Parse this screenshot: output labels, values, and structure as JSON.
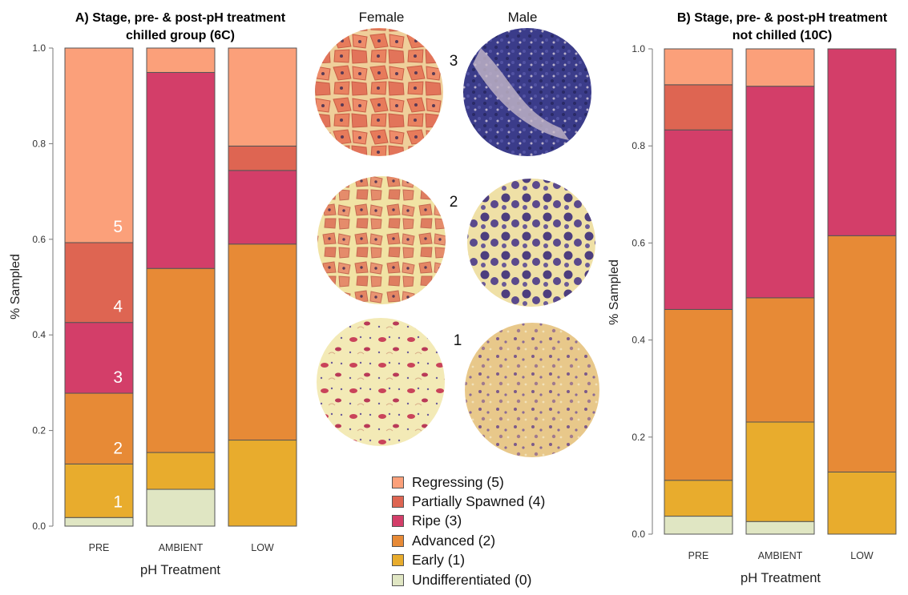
{
  "colors": {
    "stage5": "#FBA07A",
    "stage4": "#DE6552",
    "stage3": "#D33E69",
    "stage2": "#E78A36",
    "stage1": "#E8AC2D",
    "stage0": "#E0E6C3",
    "axis": "#777777",
    "bar_edge": "#555555"
  },
  "micrographs": {
    "female_label": "Female",
    "male_label": "Male",
    "row_labels": [
      "3",
      "2",
      "1"
    ]
  },
  "legend": [
    {
      "label": "Regressing (5)",
      "color": "#FBA07A"
    },
    {
      "label": "Partially Spawned (4)",
      "color": "#DE6552"
    },
    {
      "label": "Ripe (3)",
      "color": "#D33E69"
    },
    {
      "label": "Advanced (2)",
      "color": "#E78A36"
    },
    {
      "label": "Early (1)",
      "color": "#E8AC2D"
    },
    {
      "label": "Undifferentiated (0)",
      "color": "#E0E6C3"
    }
  ],
  "chart_data": [
    {
      "type": "bar",
      "stacked": true,
      "title": "A) Stage, pre- & post-pH treatment",
      "subtitle": "chilled group (6C)",
      "xlabel": "pH Treatment",
      "ylabel": "% Sampled",
      "ylim": [
        0,
        1
      ],
      "yticks": [
        "0.0",
        "0.2",
        "0.4",
        "0.6",
        "0.8",
        "1.0"
      ],
      "categories": [
        "PRE",
        "AMBIENT",
        "LOW"
      ],
      "stage_labels": [
        "1",
        "2",
        "3",
        "4",
        "5"
      ],
      "series": [
        {
          "name": "Undifferentiated (0)",
          "values": [
            0.018,
            0.077,
            0.0
          ]
        },
        {
          "name": "Early (1)",
          "values": [
            0.112,
            0.077,
            0.18
          ]
        },
        {
          "name": "Advanced (2)",
          "values": [
            0.148,
            0.385,
            0.41
          ]
        },
        {
          "name": "Ripe (3)",
          "values": [
            0.148,
            0.41,
            0.154
          ]
        },
        {
          "name": "Partially Spawned (4)",
          "values": [
            0.167,
            0.0,
            0.051
          ]
        },
        {
          "name": "Regressing (5)",
          "values": [
            0.407,
            0.051,
            0.205
          ]
        }
      ]
    },
    {
      "type": "bar",
      "stacked": true,
      "title": "B) Stage, pre- & post-pH treatment",
      "subtitle": "not chilled (10C)",
      "xlabel": "pH Treatment",
      "ylabel": "% Sampled",
      "ylim": [
        0,
        1
      ],
      "yticks": [
        "0.0",
        "0.2",
        "0.4",
        "0.6",
        "0.8",
        "1.0"
      ],
      "categories": [
        "PRE",
        "AMBIENT",
        "LOW"
      ],
      "series": [
        {
          "name": "Undifferentiated (0)",
          "values": [
            0.037,
            0.026,
            0.0
          ]
        },
        {
          "name": "Early (1)",
          "values": [
            0.074,
            0.205,
            0.128
          ]
        },
        {
          "name": "Advanced (2)",
          "values": [
            0.352,
            0.256,
            0.487
          ]
        },
        {
          "name": "Ripe (3)",
          "values": [
            0.37,
            0.436,
            0.385
          ]
        },
        {
          "name": "Partially Spawned (4)",
          "values": [
            0.093,
            0.0,
            0.0
          ]
        },
        {
          "name": "Regressing (5)",
          "values": [
            0.074,
            0.077,
            0.0
          ]
        }
      ]
    }
  ]
}
